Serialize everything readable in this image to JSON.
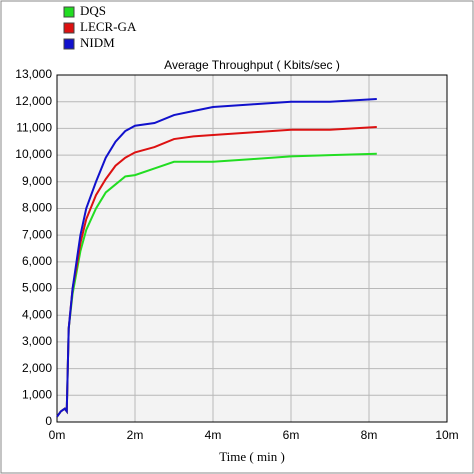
{
  "chart_data": {
    "type": "line",
    "title": "Average Throughput ( Kbits/sec )",
    "x_label": "Time ( min )",
    "x": [
      0,
      0.1,
      0.2,
      0.25,
      0.3,
      0.4,
      0.5,
      0.6,
      0.75,
      1,
      1.25,
      1.5,
      1.75,
      2,
      2.5,
      3,
      3.5,
      4,
      5,
      6,
      7,
      8.2
    ],
    "series": [
      {
        "name": "DQS",
        "color": "#22dd22",
        "values": [
          200,
          400,
          500,
          400,
          3500,
          4800,
          5600,
          6400,
          7200,
          8000,
          8600,
          8900,
          9200,
          9250,
          9500,
          9750,
          9750,
          9750,
          9850,
          9950,
          10000,
          10050
        ]
      },
      {
        "name": "LECR-GA",
        "color": "#dd1111",
        "values": [
          200,
          400,
          500,
          400,
          3500,
          5000,
          5800,
          6700,
          7600,
          8500,
          9100,
          9600,
          9900,
          10100,
          10300,
          10600,
          10700,
          10750,
          10850,
          10950,
          10950,
          11050
        ]
      },
      {
        "name": "NIDM",
        "color": "#1111cc",
        "values": [
          200,
          400,
          500,
          400,
          3500,
          5000,
          6000,
          7000,
          8000,
          9000,
          9900,
          10500,
          10900,
          11100,
          11200,
          11500,
          11650,
          11800,
          11900,
          12000,
          12000,
          12100
        ]
      }
    ],
    "xlim": [
      0,
      10
    ],
    "xticks": [
      {
        "value": 0,
        "label": "0m"
      },
      {
        "value": 2,
        "label": "2m"
      },
      {
        "value": 4,
        "label": "4m"
      },
      {
        "value": 6,
        "label": "6m"
      },
      {
        "value": 8,
        "label": "8m"
      },
      {
        "value": 10,
        "label": "10m"
      }
    ],
    "ylim": [
      0,
      13000
    ],
    "yticks": [
      0,
      {
        "value": 1000,
        "label": "1,000"
      },
      {
        "value": 2000,
        "label": "2,000"
      },
      {
        "value": 3000,
        "label": "3,000"
      },
      {
        "value": 4000,
        "label": "4,000"
      },
      {
        "value": 5000,
        "label": "5,000"
      },
      {
        "value": 6000,
        "label": "6,000"
      },
      {
        "value": 7000,
        "label": "7,000"
      },
      {
        "value": 8000,
        "label": "8,000"
      },
      {
        "value": 9000,
        "label": "9,000"
      },
      {
        "value": 10000,
        "label": "10,000"
      },
      {
        "value": 11000,
        "label": "11,000"
      },
      {
        "value": 12000,
        "label": "12,000"
      },
      {
        "value": 13000,
        "label": "13,000"
      }
    ],
    "grid": true,
    "legend": "top-left"
  }
}
